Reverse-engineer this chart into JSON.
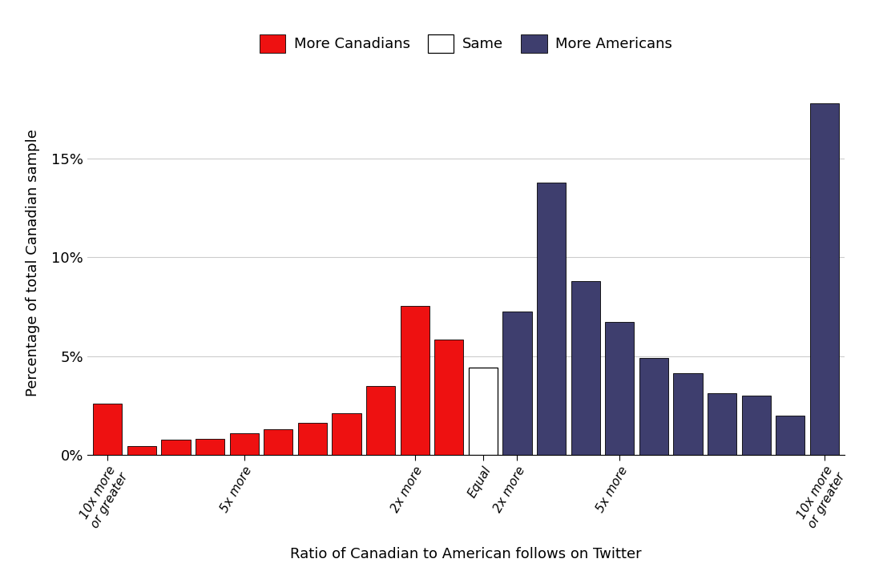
{
  "bars": [
    {
      "value": 2.6,
      "color": "#EE1111",
      "group": "canadian"
    },
    {
      "value": 0.45,
      "color": "#EE1111",
      "group": "canadian"
    },
    {
      "value": 0.75,
      "color": "#EE1111",
      "group": "canadian"
    },
    {
      "value": 0.8,
      "color": "#EE1111",
      "group": "canadian"
    },
    {
      "value": 1.1,
      "color": "#EE1111",
      "group": "canadian"
    },
    {
      "value": 1.3,
      "color": "#EE1111",
      "group": "canadian"
    },
    {
      "value": 1.6,
      "color": "#EE1111",
      "group": "canadian"
    },
    {
      "value": 2.1,
      "color": "#EE1111",
      "group": "canadian"
    },
    {
      "value": 3.5,
      "color": "#EE1111",
      "group": "canadian"
    },
    {
      "value": 7.55,
      "color": "#EE1111",
      "group": "canadian"
    },
    {
      "value": 5.85,
      "color": "#EE1111",
      "group": "canadian"
    },
    {
      "value": 4.4,
      "color": "#FFFFFF",
      "group": "equal"
    },
    {
      "value": 7.25,
      "color": "#3E3E6E",
      "group": "american"
    },
    {
      "value": 13.8,
      "color": "#3E3E6E",
      "group": "american"
    },
    {
      "value": 8.8,
      "color": "#3E3E6E",
      "group": "american"
    },
    {
      "value": 6.75,
      "color": "#3E3E6E",
      "group": "american"
    },
    {
      "value": 4.9,
      "color": "#3E3E6E",
      "group": "american"
    },
    {
      "value": 4.15,
      "color": "#3E3E6E",
      "group": "american"
    },
    {
      "value": 3.1,
      "color": "#3E3E6E",
      "group": "american"
    },
    {
      "value": 3.0,
      "color": "#3E3E6E",
      "group": "american"
    },
    {
      "value": 2.0,
      "color": "#3E3E6E",
      "group": "american"
    },
    {
      "value": 17.8,
      "color": "#3E3E6E",
      "group": "american"
    }
  ],
  "xtick_positions": [
    0,
    4,
    9,
    11,
    12,
    15,
    21
  ],
  "xtick_labels": [
    "10x more\nor greater",
    "5x more",
    "2x more",
    "Equal",
    "2x more",
    "5x more",
    "10x more\nor greater"
  ],
  "ylabel": "Percentage of total Canadian sample",
  "xlabel": "Ratio of Canadian to American follows on Twitter",
  "ylim": [
    0,
    19.5
  ],
  "yticks": [
    0,
    5,
    10,
    15
  ],
  "ytick_labels": [
    "0%",
    "5%",
    "10%",
    "15%"
  ],
  "legend_labels": [
    "More Canadians",
    "Same",
    "More Americans"
  ],
  "legend_colors": [
    "#EE1111",
    "#FFFFFF",
    "#3E3E6E"
  ],
  "background_color": "#FFFFFF",
  "grid_color": "#CCCCCC"
}
